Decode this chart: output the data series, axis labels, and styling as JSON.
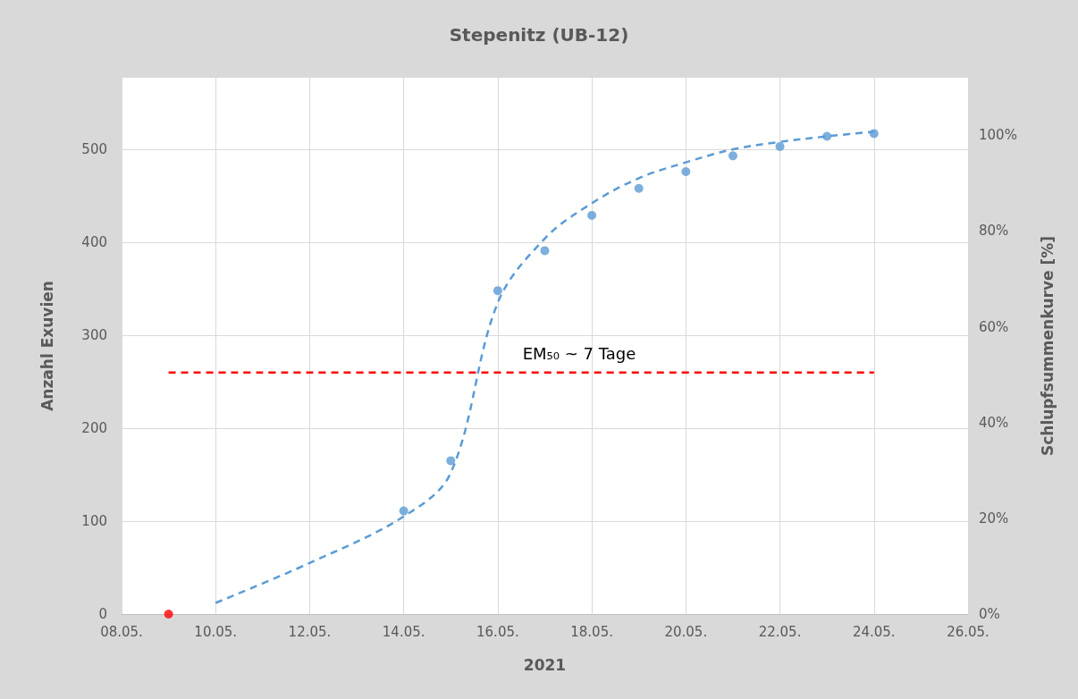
{
  "chart_data": {
    "type": "scatter",
    "title": "Stepenitz (UB-12)",
    "xlabel": "2021",
    "ylabel": "Anzahl Exuvien",
    "y2label": "Schlupfsummenkurve [%]",
    "xlim": [
      "--05-08",
      "--05-26"
    ],
    "xticks": [
      {
        "value": "--05-08",
        "label": "08.05."
      },
      {
        "value": "--05-10",
        "label": "10.05."
      },
      {
        "value": "--05-12",
        "label": "12.05."
      },
      {
        "value": "--05-14",
        "label": "14.05."
      },
      {
        "value": "--05-16",
        "label": "16.05."
      },
      {
        "value": "--05-18",
        "label": "18.05."
      },
      {
        "value": "--05-20",
        "label": "20.05."
      },
      {
        "value": "--05-22",
        "label": "22.05."
      },
      {
        "value": "--05-24",
        "label": "24.05."
      },
      {
        "value": "--05-26",
        "label": "26.05."
      }
    ],
    "ylim": [
      0,
      577
    ],
    "yticks": [
      0,
      100,
      200,
      300,
      400,
      500
    ],
    "y2lim": [
      0,
      112
    ],
    "y2ticks": [
      {
        "value": 0,
        "label": "0%"
      },
      {
        "value": 20,
        "label": "20%"
      },
      {
        "value": 40,
        "label": "40%"
      },
      {
        "value": 60,
        "label": "60%"
      },
      {
        "value": 80,
        "label": "80%"
      },
      {
        "value": 100,
        "label": "100%"
      }
    ],
    "grid": true,
    "series": [
      {
        "marker": "circle",
        "color": "#5b9bd5",
        "colors": [
          "#ff0000",
          "#5b9bd5",
          "#5b9bd5",
          "#5b9bd5",
          "#5b9bd5",
          "#5b9bd5",
          "#5b9bd5",
          "#5b9bd5",
          "#5b9bd5",
          "#5b9bd5",
          "#5b9bd5",
          "#5b9bd5"
        ],
        "x": [
          "--05-09",
          "--05-14",
          "--05-15",
          "--05-16",
          "--05-17",
          "--05-18",
          "--05-19",
          "--05-20",
          "--05-21",
          "--05-22",
          "--05-23",
          "--05-24"
        ],
        "values": [
          0,
          111,
          165,
          348,
          391,
          429,
          458,
          476,
          493,
          503,
          514,
          517
        ]
      },
      {
        "type": "line",
        "marker": "none",
        "line_style": "dashed",
        "color": "#5b9bd5",
        "x": [
          "--05-10",
          "--05-12",
          "--05-14",
          "--05-15",
          "--05-16",
          "--05-17",
          "--05-18",
          "--05-19",
          "--05-20",
          "--05-21",
          "--05-22",
          "--05-23",
          "--05-24"
        ],
        "values": [
          12,
          55,
          105,
          152,
          335,
          404,
          442,
          469,
          486,
          500,
          508,
          514,
          519
        ]
      },
      {
        "type": "line",
        "marker": "none",
        "line_style": "dashed",
        "color": "#ff0000",
        "x": [
          "--05-09",
          "--05-24"
        ],
        "values": [
          260,
          260
        ]
      }
    ],
    "annotations": [
      "EM₅₀ ~ 7 Tage"
    ]
  }
}
